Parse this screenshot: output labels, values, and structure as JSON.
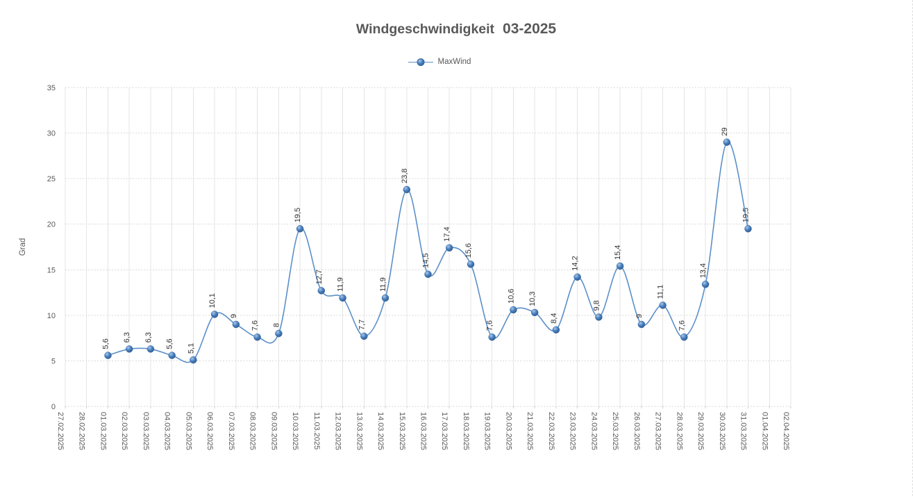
{
  "chart_data": {
    "type": "line",
    "title": {
      "main": "Windgeschwindigkeit",
      "period": "03-2025"
    },
    "legend": [
      {
        "name": "MaxWind"
      }
    ],
    "legend_position": "top-center",
    "ylabel": "Grad",
    "ylim": [
      0,
      35
    ],
    "ytick_interval": 5,
    "ytick_labels": [
      "0",
      "5",
      "10",
      "15",
      "20",
      "25",
      "30",
      "35"
    ],
    "grid": {
      "horizontal": "dotted",
      "vertical": "solid"
    },
    "smooth_line": true,
    "marker_style": "sphere",
    "x_categories": [
      "27.02.2025",
      "28.02.2025",
      "01.03.2025",
      "02.03.2025",
      "03.03.2025",
      "04.03.2025",
      "05.03.2025",
      "06.03.2025",
      "07.03.2025",
      "08.03.2025",
      "09.03.2025",
      "10.03.2025",
      "11.03.2025",
      "12.03.2025",
      "13.03.2025",
      "14.03.2025",
      "15.03.2025",
      "16.03.2025",
      "17.03.2025",
      "18.03.2025",
      "19.03.2025",
      "20.03.2025",
      "21.03.2025",
      "22.03.2025",
      "23.03.2025",
      "24.03.2025",
      "25.03.2025",
      "26.03.2025",
      "27.03.2025",
      "28.03.2025",
      "29.03.2025",
      "30.03.2025",
      "31.03.2025",
      "01.04.2025",
      "02.04.2025"
    ],
    "series": [
      {
        "name": "MaxWind",
        "start_category_index": 2,
        "values": [
          5.6,
          6.3,
          6.3,
          5.6,
          5.1,
          10.1,
          9,
          7.6,
          8,
          19.5,
          12.7,
          11.9,
          7.7,
          11.9,
          23.8,
          14.5,
          17.4,
          15.6,
          7.6,
          10.6,
          10.3,
          8.4,
          14.2,
          9.8,
          15.4,
          9,
          11.1,
          7.6,
          13.4,
          29,
          19.5
        ],
        "data_labels": [
          "5,6",
          "6,3",
          "6,3",
          "5,6",
          "5,1",
          "10,1",
          "9",
          "7,6",
          "8",
          "19,5",
          "12,7",
          "11,9",
          "7,7",
          "11,9",
          "23,8",
          "14,5",
          "17,4",
          "15,6",
          "7,6",
          "10,6",
          "10,3",
          "8,4",
          "14,2",
          "9,8",
          "15,4",
          "9",
          "11,1",
          "7,6",
          "13,4",
          "29",
          "19,5"
        ]
      }
    ],
    "colors": {
      "line": "#5b8fc9",
      "marker_light": "#a9c9e8",
      "marker_mid": "#4a80c0",
      "marker_dark": "#27517f",
      "marker_rim": "#3a6aa0",
      "title_text": "#595959",
      "axis_text": "#595959",
      "data_label_text": "#333333",
      "grid_horizontal": "#d8d8d8",
      "grid_vertical": "#e4e4e4"
    }
  }
}
